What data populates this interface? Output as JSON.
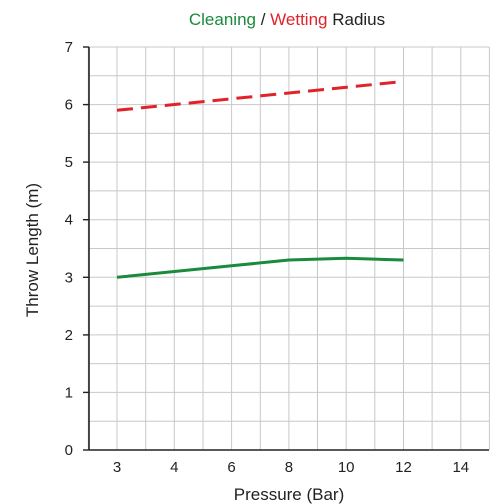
{
  "chart_data": {
    "type": "line",
    "title_parts": [
      {
        "text": "Cleaning",
        "color": "#1a8a3c"
      },
      {
        "text": " / ",
        "color": "#222222"
      },
      {
        "text": "Wetting",
        "color": "#e0232a"
      },
      {
        "text": " Radius",
        "color": "#222222"
      }
    ],
    "xlabel": "Pressure (Bar)",
    "ylabel": "Throw Length (m)",
    "x_ticks": [
      "3",
      "4",
      "6",
      "8",
      "10",
      "12",
      "14"
    ],
    "y_ticks": [
      0,
      1,
      2,
      3,
      4,
      5,
      6,
      7
    ],
    "ylim": [
      0,
      7
    ],
    "grid": true,
    "series": [
      {
        "name": "Wetting",
        "color": "#e0232a",
        "style": "dashed",
        "points": [
          {
            "x": "3",
            "y": 5.9
          },
          {
            "x": "12",
            "y": 6.4
          }
        ]
      },
      {
        "name": "Cleaning",
        "color": "#1a8a3c",
        "style": "solid",
        "points": [
          {
            "x": "3",
            "y": 3.0
          },
          {
            "x": "6",
            "y": 3.2
          },
          {
            "x": "8",
            "y": 3.3
          },
          {
            "x": "10",
            "y": 3.33
          },
          {
            "x": "12",
            "y": 3.3
          }
        ]
      }
    ]
  }
}
